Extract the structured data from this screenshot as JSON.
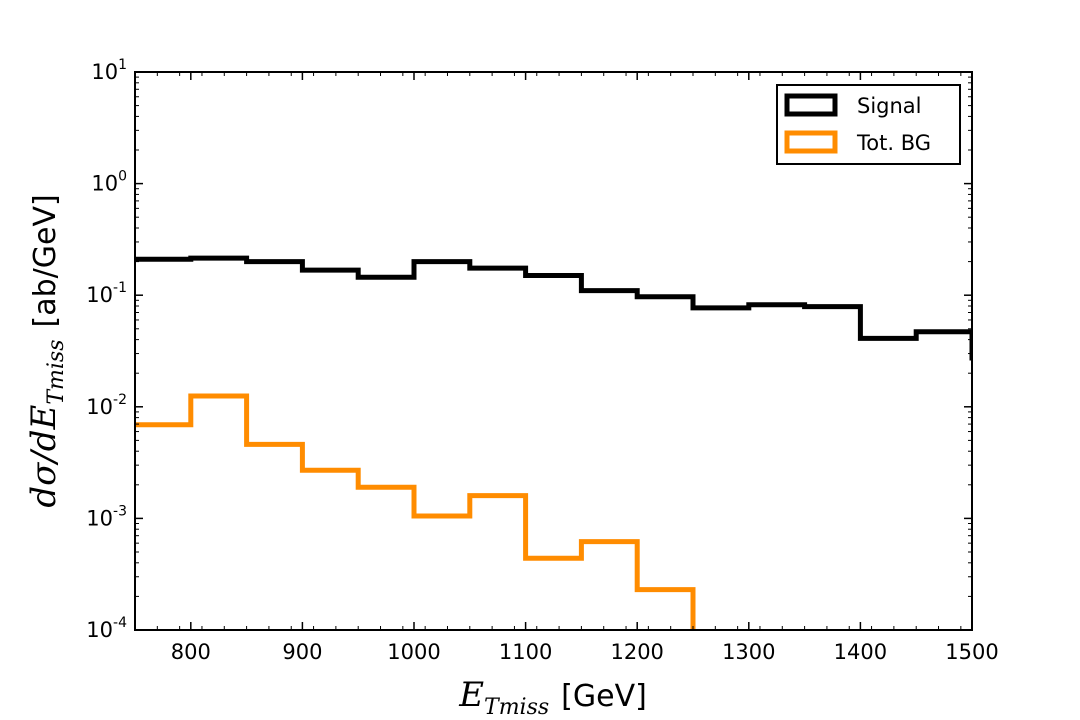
{
  "chart_data": {
    "type": "step",
    "title": "",
    "xlabel": {
      "math": "E",
      "math_sub": "Tmiss",
      "unit": "[GeV]"
    },
    "ylabel": {
      "math_pre": "dσ/dE",
      "math_sub": "Tmiss",
      "unit": "[ab/GeV]"
    },
    "xlim": [
      750,
      1500
    ],
    "ylim": [
      0.0001,
      10
    ],
    "yscale": "log",
    "x_ticks": [
      800,
      900,
      1000,
      1100,
      1200,
      1300,
      1400,
      1500
    ],
    "y_ticks": [
      {
        "value": 0.0001,
        "base": "10",
        "exp": "-4"
      },
      {
        "value": 0.001,
        "base": "10",
        "exp": "-3"
      },
      {
        "value": 0.01,
        "base": "10",
        "exp": "-2"
      },
      {
        "value": 0.1,
        "base": "10",
        "exp": "-1"
      },
      {
        "value": 1,
        "base": "10",
        "exp": "0"
      },
      {
        "value": 10,
        "base": "10",
        "exp": "1"
      }
    ],
    "bin_edges": [
      750,
      800,
      850,
      900,
      950,
      1000,
      1050,
      1100,
      1150,
      1200,
      1250,
      1300,
      1350,
      1400,
      1450,
      1500
    ],
    "series": [
      {
        "name": "Signal",
        "color": "#000000",
        "values": [
          0.21,
          0.215,
          0.2,
          0.168,
          0.145,
          0.2,
          0.175,
          0.15,
          0.11,
          0.097,
          0.077,
          0.082,
          0.079,
          0.041,
          0.047
        ],
        "end_drop_to": 0.026
      },
      {
        "name": "Tot. BG",
        "color": "#ff8c00",
        "values": [
          0.0069,
          0.0125,
          0.0046,
          0.0027,
          0.0019,
          0.00105,
          0.0016,
          0.00044,
          0.00062,
          0.00023
        ],
        "end_drop_to": 0.0001
      }
    ],
    "legend": {
      "position": "top-right",
      "entries": [
        "Signal",
        "Tot. BG"
      ]
    }
  }
}
